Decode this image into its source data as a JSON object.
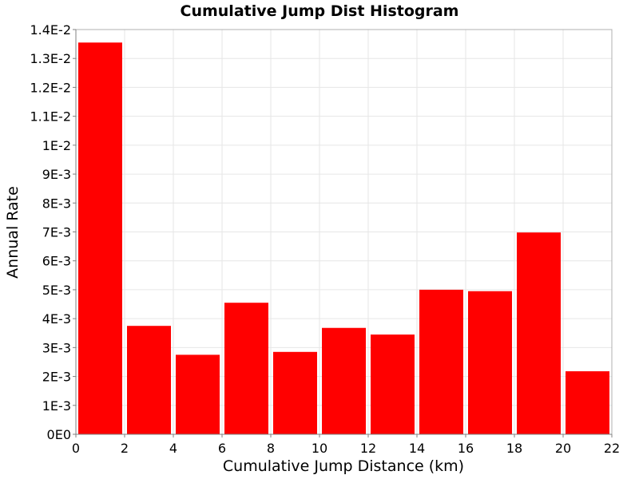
{
  "chart_data": {
    "type": "bar",
    "title": "Cumulative Jump Dist Histogram",
    "xlabel": "Cumulative Jump Distance (km)",
    "ylabel": "Annual Rate",
    "xlim": [
      0,
      22
    ],
    "ylim": [
      0,
      0.014
    ],
    "x_ticks": [
      0,
      2,
      4,
      6,
      8,
      10,
      12,
      14,
      16,
      18,
      20,
      22
    ],
    "y_ticks": [
      0,
      0.001,
      0.002,
      0.003,
      0.004,
      0.005,
      0.006,
      0.007,
      0.008,
      0.009,
      0.01,
      0.011,
      0.012,
      0.013,
      0.014
    ],
    "y_tick_labels": [
      "0E0",
      "1E-3",
      "2E-3",
      "3E-3",
      "4E-3",
      "5E-3",
      "6E-3",
      "7E-3",
      "8E-3",
      "9E-3",
      "1E-2",
      "1.1E-2",
      "1.2E-2",
      "1.3E-2",
      "1.4E-2"
    ],
    "bin_width": 2,
    "bins": [
      {
        "x_start": 0,
        "x_end": 2,
        "value": 0.01355
      },
      {
        "x_start": 2,
        "x_end": 4,
        "value": 0.00375
      },
      {
        "x_start": 4,
        "x_end": 6,
        "value": 0.00275
      },
      {
        "x_start": 6,
        "x_end": 8,
        "value": 0.00455
      },
      {
        "x_start": 8,
        "x_end": 10,
        "value": 0.00285
      },
      {
        "x_start": 10,
        "x_end": 12,
        "value": 0.00368
      },
      {
        "x_start": 12,
        "x_end": 14,
        "value": 0.00345
      },
      {
        "x_start": 14,
        "x_end": 16,
        "value": 0.005
      },
      {
        "x_start": 16,
        "x_end": 18,
        "value": 0.00495
      },
      {
        "x_start": 18,
        "x_end": 20,
        "value": 0.00698
      },
      {
        "x_start": 20,
        "x_end": 22,
        "value": 0.00218
      }
    ],
    "bar_color": "#ff0000",
    "grid": true,
    "legend": "none"
  }
}
